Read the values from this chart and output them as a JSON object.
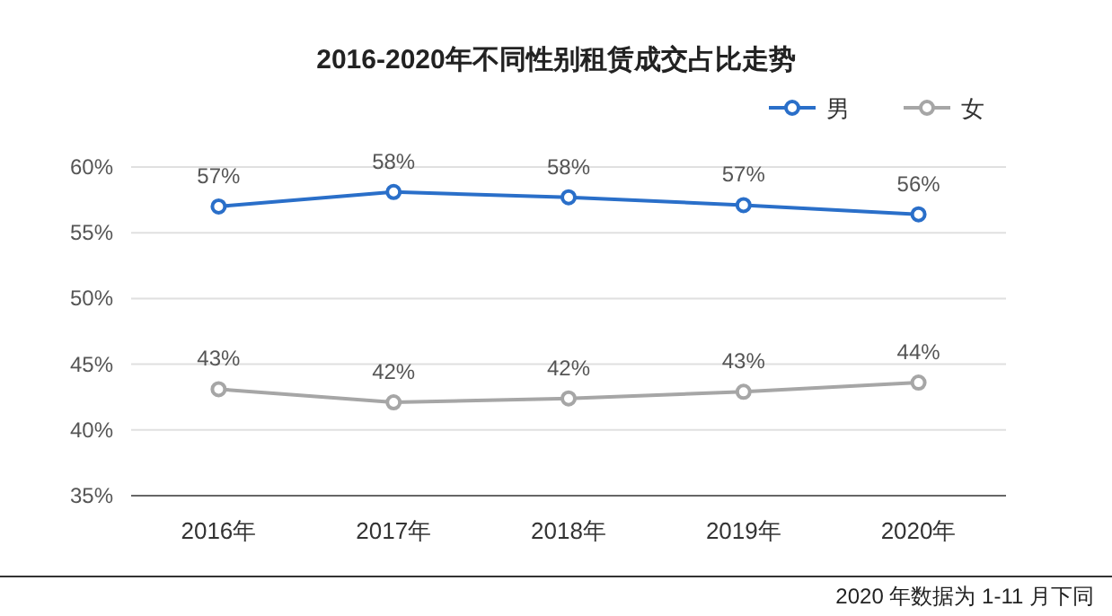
{
  "chart_data": {
    "type": "line",
    "title": "2016-2020年不同性别租赁成交占比走势",
    "categories": [
      "2016年",
      "2017年",
      "2018年",
      "2019年",
      "2020年"
    ],
    "series": [
      {
        "name": "男",
        "color": "#2a6fc9",
        "values": [
          57.0,
          58.1,
          57.7,
          57.1,
          56.4
        ],
        "value_labels": [
          "57%",
          "58%",
          "58%",
          "57%",
          "56%"
        ]
      },
      {
        "name": "女",
        "color": "#a6a6a6",
        "values": [
          43.1,
          42.1,
          42.4,
          42.9,
          43.6
        ],
        "value_labels": [
          "43%",
          "42%",
          "42%",
          "43%",
          "44%"
        ]
      }
    ],
    "ylim": [
      35,
      60
    ],
    "yticks": [
      {
        "value": 35,
        "label": "35%"
      },
      {
        "value": 40,
        "label": "40%"
      },
      {
        "value": 45,
        "label": "45%"
      },
      {
        "value": 50,
        "label": "50%"
      },
      {
        "value": 55,
        "label": "55%"
      },
      {
        "value": 60,
        "label": "60%"
      }
    ],
    "grid": "y",
    "legend": "top right",
    "marker": "circle",
    "annotations": [
      "2020 年数据为 1-11 月下同"
    ]
  }
}
